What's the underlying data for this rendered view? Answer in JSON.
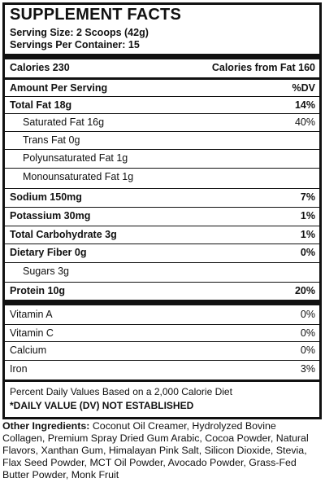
{
  "title": "SUPPLEMENT FACTS",
  "serving_size": "Serving Size: 2 Scoops (42g)",
  "servings_per_container": "Servings Per Container: 15",
  "calories_label": "Calories 230",
  "calories_from_fat_label": "Calories from Fat 160",
  "amount_header": "Amount Per Serving",
  "dv_header": "%DV",
  "nutrients": [
    {
      "name": "Total Fat 18g",
      "dv": "14%"
    },
    {
      "name": "Saturated Fat 16g",
      "dv": "40%"
    },
    {
      "name": "Trans Fat 0g",
      "dv": ""
    },
    {
      "name": "Polyunsaturated Fat 1g",
      "dv": ""
    },
    {
      "name": "Monounsaturated Fat 1g",
      "dv": ""
    },
    {
      "name": "Sodium 150mg",
      "dv": "7%"
    },
    {
      "name": "Potassium 30mg",
      "dv": "1%"
    },
    {
      "name": "Total Carbohydrate 3g",
      "dv": "1%"
    },
    {
      "name": "Dietary Fiber 0g",
      "dv": "0%"
    },
    {
      "name": "Sugars 3g",
      "dv": ""
    },
    {
      "name": "Protein 10g",
      "dv": "20%"
    }
  ],
  "vitamins": [
    {
      "name": "Vitamin A",
      "dv": "0%"
    },
    {
      "name": "Vitamin C",
      "dv": "0%"
    },
    {
      "name": "Calcium",
      "dv": "0%"
    },
    {
      "name": "Iron",
      "dv": "3%"
    }
  ],
  "footnote_1": "Percent Daily Values Based on a 2,000 Calorie Diet",
  "footnote_2": "*DAILY VALUE (DV) NOT ESTABLISHED",
  "other_ingredients_label": "Other Ingredients:",
  "other_ingredients_text": "Coconut Oil Creamer, Hydrolyzed Bovine Collagen, Premium Spray Dried Gum Arabic, Cocoa Powder, Natural Flavors, Xanthan Gum, Himalayan Pink Salt, Silicon Dioxide, Stevia, Flax Seed Powder, MCT Oil Powder, Avocado Powder, Grass-Fed Butter Powder, Monk Fruit"
}
